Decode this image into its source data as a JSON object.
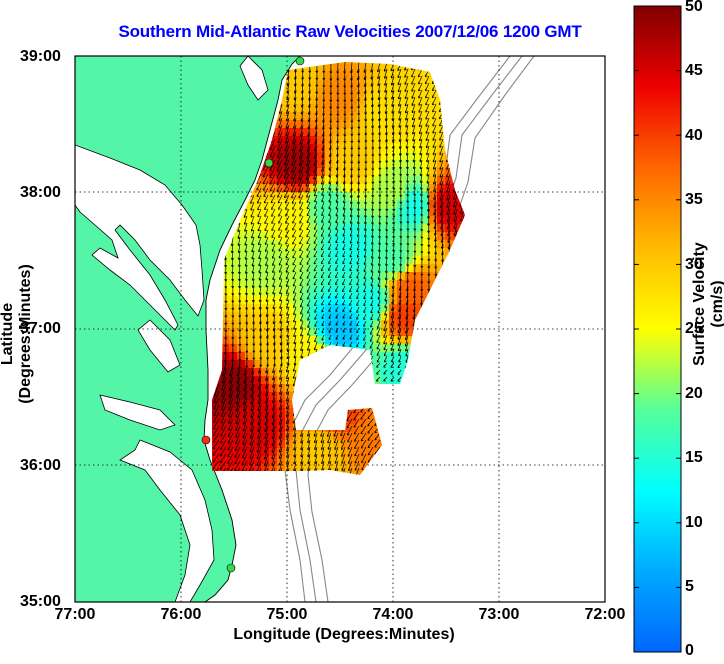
{
  "title": "Southern Mid-Atlantic Raw Velocities 2007/12/06 1200 GMT",
  "x_axis": {
    "label": "Longitude (Degrees:Minutes)",
    "ticks": [
      "77:00",
      "76:00",
      "75:00",
      "74:00",
      "73:00",
      "72:00"
    ]
  },
  "y_axis": {
    "label": "Latitude (Degrees:Minutes)",
    "ticks": [
      "39:00",
      "38:00",
      "37:00",
      "36:00",
      "35:00"
    ]
  },
  "colorbar": {
    "label": "Surface Velocity (cm/s)",
    "ticks": [
      "50",
      "45",
      "40",
      "35",
      "30",
      "25",
      "20",
      "15",
      "10",
      "5",
      "0"
    ],
    "min": 0,
    "max": 50,
    "colormap": "jet"
  },
  "map": {
    "longitude_range": [
      -77,
      -72
    ],
    "latitude_range": [
      35,
      39
    ],
    "land_color": "#55f5a8",
    "water_color": "#ffffff",
    "coastline_color": "#000000",
    "bathymetry_color": "#888888",
    "station_marker_color": "#32d84a",
    "highlight_station_color": "#ff2a1a",
    "grid": "dotted"
  },
  "velocity_regions": [
    {
      "area": "northern shelf off Delaware/New Jersey",
      "speed_cm_s": 35
    },
    {
      "area": "off Delmarva near 38:10N 74:55W",
      "speed_cm_s": 48
    },
    {
      "area": "mid shelf near 37:40N 74:20W",
      "speed_cm_s": 12
    },
    {
      "area": "off Chesapeake Bay mouth 36:30N 75:30W",
      "speed_cm_s": 48
    },
    {
      "area": "outer shelf near 37:20N 73:50W",
      "speed_cm_s": 38
    },
    {
      "area": "outer shelf near 38:00N 73:30W",
      "speed_cm_s": 45
    },
    {
      "area": "slope near 37:00N 74:30W",
      "speed_cm_s": 8
    },
    {
      "area": "south of bay mouth 36:20N 74:20W",
      "speed_cm_s": 40
    }
  ]
}
